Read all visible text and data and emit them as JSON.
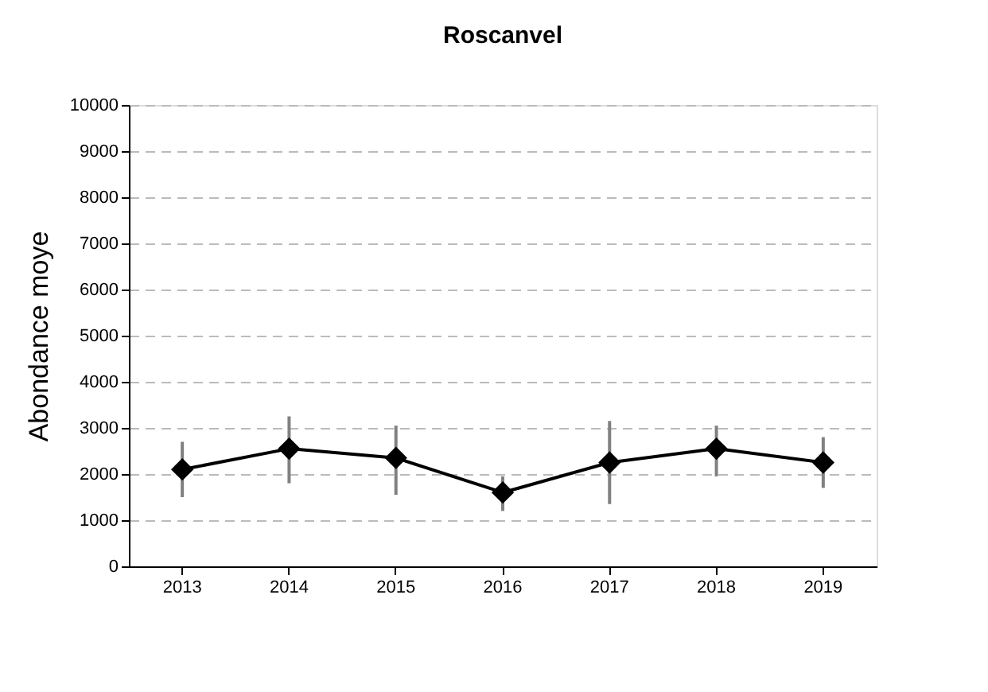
{
  "chart_data": {
    "type": "line",
    "title": "Roscanvel",
    "ylabel": "Abondance moye",
    "categories": [
      "2013",
      "2014",
      "2015",
      "2016",
      "2017",
      "2018",
      "2019"
    ],
    "series": [
      {
        "color": "#000000",
        "values": [
          2100,
          2550,
          2350,
          1600,
          2250,
          2550,
          2250
        ],
        "errors": [
          [
            1500,
            2700
          ],
          [
            1800,
            3250
          ],
          [
            1550,
            3050
          ],
          [
            1200,
            1950
          ],
          [
            1350,
            3150
          ],
          [
            1950,
            3050
          ],
          [
            1700,
            2800
          ]
        ]
      }
    ],
    "ylim": [
      0,
      10000
    ],
    "yticks": [
      0,
      1000,
      2000,
      3000,
      4000,
      5000,
      6000,
      7000,
      8000,
      9000,
      10000
    ],
    "grid": "y",
    "marker": "diamond",
    "line_style": "solid"
  }
}
